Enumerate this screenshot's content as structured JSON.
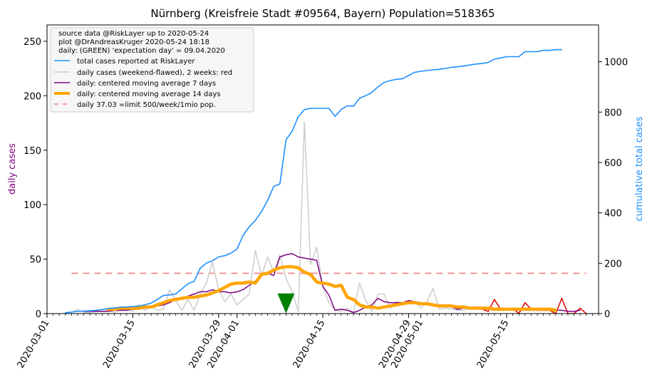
{
  "chart_data": {
    "type": "line",
    "title": "Nürnberg (Kreisfreie Stadt #09564, Bayern) Population=518365",
    "ylabel": "daily cases",
    "y2label": "cumulative total cases",
    "xlabel": "",
    "xlim": [
      "2020-03-01",
      "2020-05-30"
    ],
    "ylim": [
      0,
      265
    ],
    "y2lim": [
      0,
      1146
    ],
    "grid": false,
    "legend_position": "top-left",
    "x_ticks": [
      "2020-03-01",
      "2020-03-15",
      "2020-03-29",
      "2020-04-01",
      "2020-04-15",
      "2020-04-29",
      "2020-05-01",
      "2020-05-15"
    ],
    "y_ticks": [
      0,
      50,
      100,
      150,
      200,
      250
    ],
    "y2_ticks": [
      0,
      200,
      400,
      600,
      800,
      1000
    ],
    "legend_header": [
      "source data @RiskLayer up to 2020-05-24",
      "plot @DrAndreasKruger 2020-05-24 18:18",
      "daily: (GREEN) 'expectation day' = 09.04.2020"
    ],
    "legend": [
      {
        "label": "total cases reported at RiskLayer",
        "color": "#1e90ff",
        "style": "solid"
      },
      {
        "label": "daily cases (weekend-flawed), 2 weeks: red",
        "color": "#cccccc",
        "style": "solid"
      },
      {
        "label": "daily: centered moving average 7 days",
        "color": "#800080",
        "style": "solid"
      },
      {
        "label": "daily: centered moving average 14 days",
        "color": "#ffa500",
        "style": "thick"
      },
      {
        "label": "daily 37.03 =limit 500/week/1mio pop.",
        "color": "#f08080",
        "style": "dashed"
      }
    ],
    "limit_line": {
      "y": 37.03,
      "x_start": "2020-03-05",
      "x_end": "2020-05-28",
      "color": "#f08080"
    },
    "expectation_day": {
      "x": "2020-04-09",
      "y": 8,
      "color": "#008000"
    },
    "series": [
      {
        "name": "total cases reported at RiskLayer",
        "axis": "right",
        "color": "#1e90ff",
        "x": [
          "2020-03-04",
          "2020-03-05",
          "2020-03-06",
          "2020-03-07",
          "2020-03-08",
          "2020-03-09",
          "2020-03-10",
          "2020-03-11",
          "2020-03-12",
          "2020-03-13",
          "2020-03-14",
          "2020-03-15",
          "2020-03-16",
          "2020-03-17",
          "2020-03-18",
          "2020-03-19",
          "2020-03-20",
          "2020-03-21",
          "2020-03-22",
          "2020-03-23",
          "2020-03-24",
          "2020-03-25",
          "2020-03-26",
          "2020-03-27",
          "2020-03-28",
          "2020-03-29",
          "2020-03-30",
          "2020-03-31",
          "2020-04-01",
          "2020-04-02",
          "2020-04-03",
          "2020-04-04",
          "2020-04-05",
          "2020-04-06",
          "2020-04-07",
          "2020-04-08",
          "2020-04-09",
          "2020-04-10",
          "2020-04-11",
          "2020-04-12",
          "2020-04-13",
          "2020-04-14",
          "2020-04-15",
          "2020-04-16",
          "2020-04-17",
          "2020-04-18",
          "2020-04-19",
          "2020-04-20",
          "2020-04-21",
          "2020-04-22",
          "2020-04-23",
          "2020-04-24",
          "2020-04-25",
          "2020-04-26",
          "2020-04-27",
          "2020-04-28",
          "2020-04-29",
          "2020-04-30",
          "2020-05-01",
          "2020-05-02",
          "2020-05-03",
          "2020-05-04",
          "2020-05-05",
          "2020-05-06",
          "2020-05-07",
          "2020-05-08",
          "2020-05-09",
          "2020-05-10",
          "2020-05-11",
          "2020-05-12",
          "2020-05-13",
          "2020-05-14",
          "2020-05-15",
          "2020-05-16",
          "2020-05-17",
          "2020-05-18",
          "2020-05-19",
          "2020-05-20",
          "2020-05-21",
          "2020-05-22",
          "2020-05-23",
          "2020-05-24"
        ],
        "values": [
          3,
          6,
          9,
          10,
          11,
          13,
          16,
          20,
          22,
          25,
          26,
          28,
          30,
          35,
          42,
          56,
          72,
          74,
          78,
          98,
          118,
          128,
          180,
          200,
          210,
          225,
          230,
          240,
          256,
          311,
          345,
          370,
          405,
          450,
          505,
          515,
          690,
          724,
          782,
          810,
          815,
          815,
          815,
          815,
          783,
          810,
          825,
          823,
          855,
          865,
          878,
          900,
          918,
          925,
          930,
          932,
          945,
          958,
          962,
          965,
          968,
          970,
          973,
          978,
          980,
          983,
          987,
          991,
          993,
          997,
          1010,
          1015,
          1020,
          1020,
          1020,
          1040,
          1040,
          1040,
          1045,
          1045,
          1048,
          1048
        ]
      },
      {
        "name": "daily cases (weekend-flawed), 2 weeks: red",
        "axis": "left",
        "color": "#cccccc",
        "recent_color": "#e00000",
        "recent_from": "2020-05-11",
        "x": [
          "2020-03-04",
          "2020-03-05",
          "2020-03-06",
          "2020-03-07",
          "2020-03-08",
          "2020-03-09",
          "2020-03-10",
          "2020-03-11",
          "2020-03-12",
          "2020-03-13",
          "2020-03-14",
          "2020-03-15",
          "2020-03-16",
          "2020-03-17",
          "2020-03-18",
          "2020-03-19",
          "2020-03-20",
          "2020-03-21",
          "2020-03-22",
          "2020-03-23",
          "2020-03-24",
          "2020-03-25",
          "2020-03-26",
          "2020-03-27",
          "2020-03-28",
          "2020-03-29",
          "2020-03-30",
          "2020-03-31",
          "2020-04-01",
          "2020-04-02",
          "2020-04-03",
          "2020-04-04",
          "2020-04-05",
          "2020-04-06",
          "2020-04-07",
          "2020-04-08",
          "2020-04-09",
          "2020-04-10",
          "2020-04-11",
          "2020-04-12",
          "2020-04-13",
          "2020-04-14",
          "2020-04-15",
          "2020-04-16",
          "2020-04-17",
          "2020-04-18",
          "2020-04-19",
          "2020-04-20",
          "2020-04-21",
          "2020-04-22",
          "2020-04-23",
          "2020-04-24",
          "2020-04-25",
          "2020-04-26",
          "2020-04-27",
          "2020-04-28",
          "2020-04-29",
          "2020-04-30",
          "2020-05-01",
          "2020-05-02",
          "2020-05-03",
          "2020-05-04",
          "2020-05-05",
          "2020-05-06",
          "2020-05-07",
          "2020-05-08",
          "2020-05-09",
          "2020-05-10",
          "2020-05-11",
          "2020-05-12",
          "2020-05-13",
          "2020-05-14",
          "2020-05-15",
          "2020-05-16",
          "2020-05-17",
          "2020-05-18",
          "2020-05-19",
          "2020-05-20",
          "2020-05-21",
          "2020-05-22",
          "2020-05-23",
          "2020-05-24",
          "2020-05-25",
          "2020-05-26",
          "2020-05-27",
          "2020-05-28"
        ],
        "values": [
          1,
          1,
          4,
          1,
          1,
          2,
          2,
          3,
          1,
          3,
          4,
          2,
          8,
          3,
          6,
          3,
          4,
          22,
          12,
          3,
          13,
          3,
          18,
          28,
          47,
          22,
          11,
          18,
          8,
          13,
          18,
          58,
          35,
          52,
          38,
          54,
          32,
          20,
          2,
          176,
          45,
          61,
          25,
          10,
          3,
          2,
          5,
          1,
          28,
          12,
          2,
          18,
          18,
          5,
          11,
          10,
          10,
          11,
          5,
          11,
          23,
          4,
          5,
          4,
          3,
          3,
          5,
          6,
          4,
          2,
          13,
          4,
          3,
          5,
          0,
          10,
          4,
          3,
          3,
          3,
          0,
          14,
          0,
          0,
          5,
          0
        ]
      },
      {
        "name": "daily: centered moving average 7 days",
        "axis": "left",
        "color": "#800080",
        "x": [
          "2020-03-07",
          "2020-03-08",
          "2020-03-09",
          "2020-03-10",
          "2020-03-11",
          "2020-03-12",
          "2020-03-13",
          "2020-03-14",
          "2020-03-15",
          "2020-03-16",
          "2020-03-17",
          "2020-03-18",
          "2020-03-19",
          "2020-03-20",
          "2020-03-21",
          "2020-03-22",
          "2020-03-23",
          "2020-03-24",
          "2020-03-25",
          "2020-03-26",
          "2020-03-27",
          "2020-03-28",
          "2020-03-29",
          "2020-03-30",
          "2020-03-31",
          "2020-04-01",
          "2020-04-02",
          "2020-04-03",
          "2020-04-04",
          "2020-04-05",
          "2020-04-06",
          "2020-04-07",
          "2020-04-08",
          "2020-04-09",
          "2020-04-10",
          "2020-04-11",
          "2020-04-12",
          "2020-04-13",
          "2020-04-14",
          "2020-04-15",
          "2020-04-16",
          "2020-04-17",
          "2020-04-18",
          "2020-04-19",
          "2020-04-20",
          "2020-04-21",
          "2020-04-22",
          "2020-04-23",
          "2020-04-24",
          "2020-04-25",
          "2020-04-26",
          "2020-04-27",
          "2020-04-28",
          "2020-04-29",
          "2020-04-30",
          "2020-05-01",
          "2020-05-02",
          "2020-05-03",
          "2020-05-04",
          "2020-05-05",
          "2020-05-06",
          "2020-05-07",
          "2020-05-08",
          "2020-05-09",
          "2020-05-10",
          "2020-05-11",
          "2020-05-12",
          "2020-05-13",
          "2020-05-14",
          "2020-05-15",
          "2020-05-16",
          "2020-05-17",
          "2020-05-18",
          "2020-05-19",
          "2020-05-20",
          "2020-05-21",
          "2020-05-22",
          "2020-05-23",
          "2020-05-24",
          "2020-05-25",
          "2020-05-26",
          "2020-05-27"
        ],
        "values": [
          2,
          2,
          2,
          2,
          2,
          3,
          3,
          3,
          4,
          4,
          5,
          6,
          7,
          8,
          10,
          13,
          14,
          16,
          18,
          20,
          20,
          22,
          20,
          20,
          19,
          20,
          22,
          26,
          30,
          36,
          37,
          35,
          52,
          54,
          55,
          52,
          51,
          50,
          49,
          25,
          17,
          3,
          4,
          3,
          1,
          3,
          6,
          8,
          14,
          11,
          10,
          10,
          10,
          12,
          11,
          10,
          9,
          8,
          7,
          6,
          6,
          4,
          5,
          5,
          6,
          5,
          4,
          3,
          4,
          4,
          3,
          3,
          3,
          3,
          3,
          3,
          3,
          3,
          3,
          2,
          2,
          3
        ]
      },
      {
        "name": "daily: centered moving average 14 days",
        "axis": "left",
        "color": "#ffa500",
        "x": [
          "2020-03-11",
          "2020-03-12",
          "2020-03-13",
          "2020-03-14",
          "2020-03-15",
          "2020-03-16",
          "2020-03-17",
          "2020-03-18",
          "2020-03-19",
          "2020-03-20",
          "2020-03-21",
          "2020-03-22",
          "2020-03-23",
          "2020-03-24",
          "2020-03-25",
          "2020-03-26",
          "2020-03-27",
          "2020-03-28",
          "2020-03-29",
          "2020-03-30",
          "2020-03-31",
          "2020-04-01",
          "2020-04-02",
          "2020-04-03",
          "2020-04-04",
          "2020-04-05",
          "2020-04-06",
          "2020-04-07",
          "2020-04-08",
          "2020-04-09",
          "2020-04-10",
          "2020-04-11",
          "2020-04-12",
          "2020-04-13",
          "2020-04-14",
          "2020-04-15",
          "2020-04-16",
          "2020-04-17",
          "2020-04-18",
          "2020-04-19",
          "2020-04-20",
          "2020-04-21",
          "2020-04-22",
          "2020-04-23",
          "2020-04-24",
          "2020-04-25",
          "2020-04-26",
          "2020-04-27",
          "2020-04-28",
          "2020-04-29",
          "2020-04-30",
          "2020-05-01",
          "2020-05-02",
          "2020-05-03",
          "2020-05-04",
          "2020-05-05",
          "2020-05-06",
          "2020-05-07",
          "2020-05-08",
          "2020-05-09",
          "2020-05-10",
          "2020-05-11",
          "2020-05-12",
          "2020-05-13",
          "2020-05-14",
          "2020-05-15",
          "2020-05-16",
          "2020-05-17",
          "2020-05-18",
          "2020-05-19",
          "2020-05-20",
          "2020-05-21",
          "2020-05-22",
          "2020-05-23"
        ],
        "values": [
          4,
          4,
          5,
          5,
          5,
          5,
          6,
          6,
          8,
          10,
          12,
          13,
          14,
          15,
          15,
          16,
          17,
          19,
          21,
          24,
          27,
          28,
          28,
          29,
          28,
          36,
          37,
          40,
          42,
          43,
          43,
          42,
          38,
          36,
          29,
          28,
          27,
          25,
          26,
          15,
          13,
          8,
          6,
          6,
          5,
          6,
          7,
          8,
          9,
          10,
          10,
          9,
          9,
          8,
          7,
          7,
          7,
          6,
          6,
          5,
          5,
          5,
          5,
          4,
          4,
          4,
          4,
          4,
          4,
          4,
          4,
          4,
          4,
          3
        ]
      }
    ]
  }
}
